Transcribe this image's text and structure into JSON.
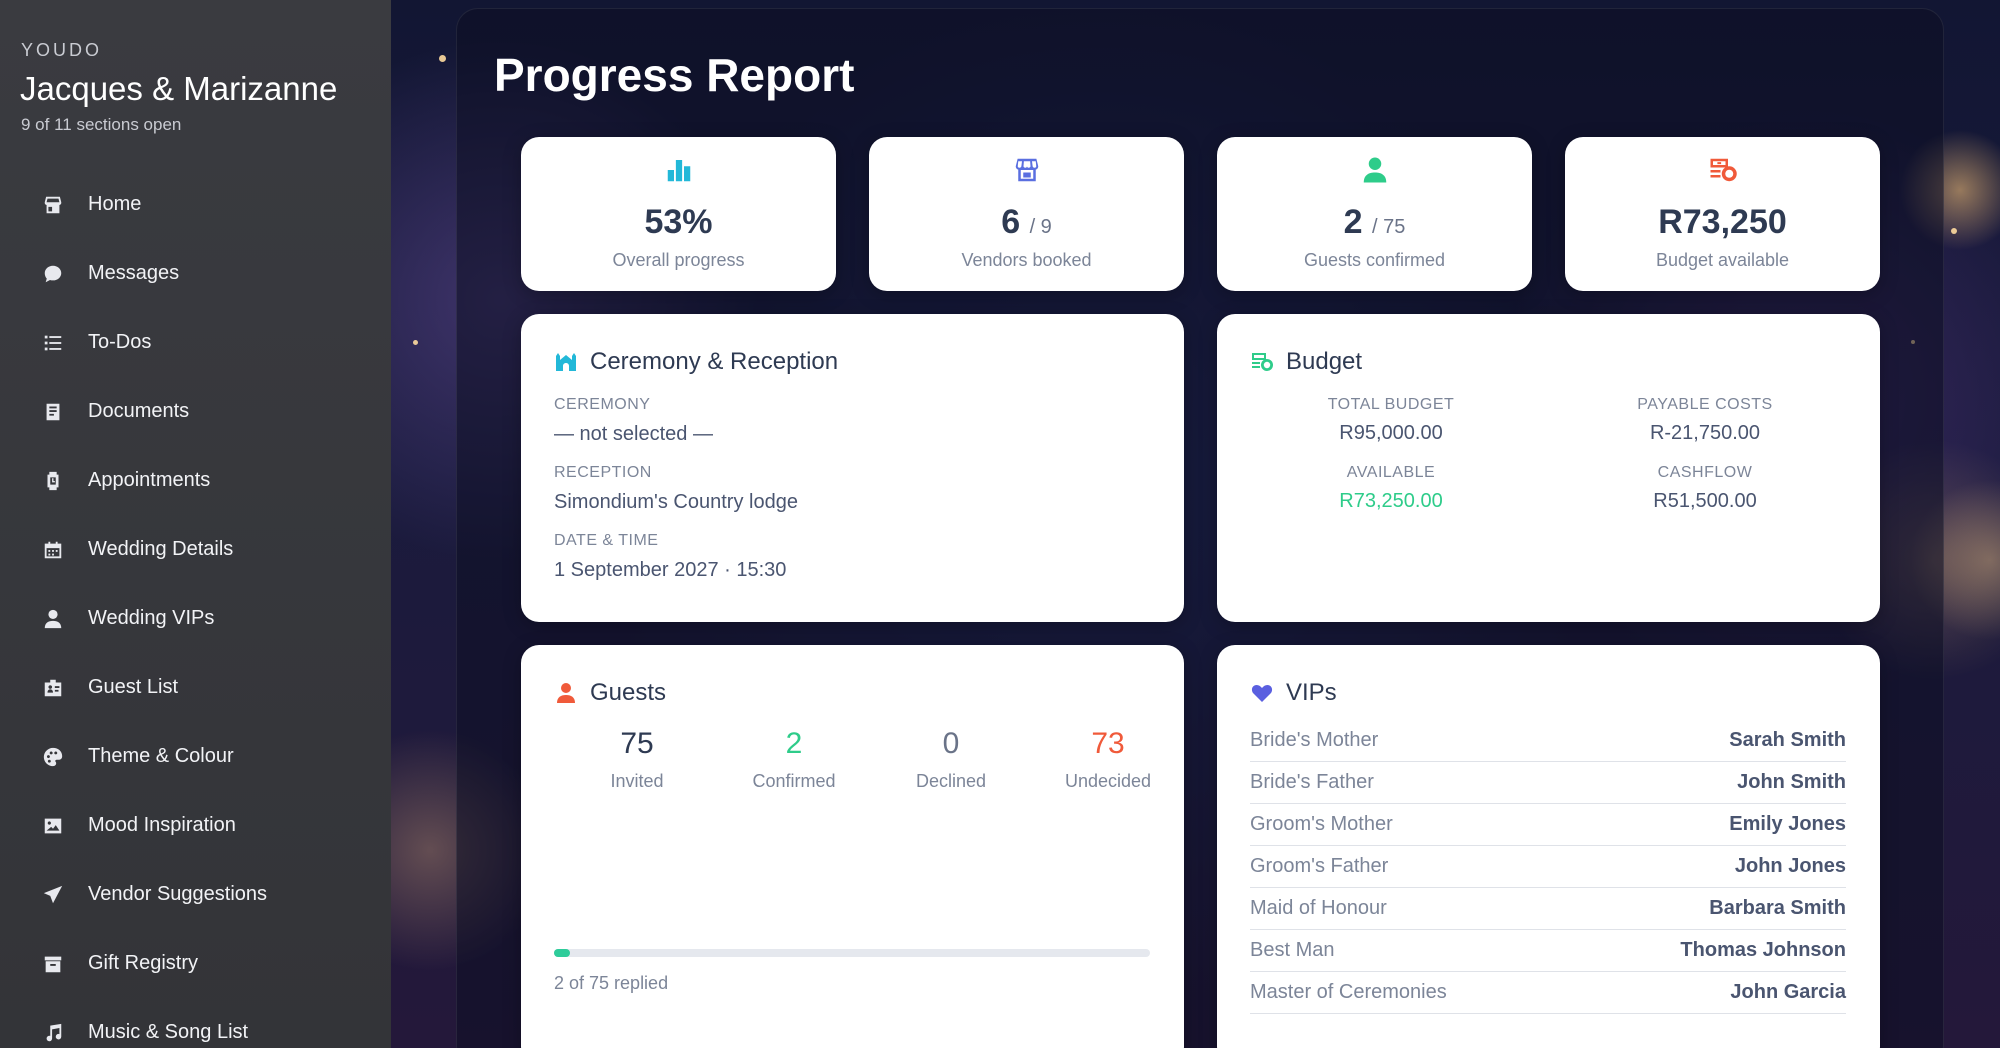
{
  "sidebar": {
    "brand": "YOUDO",
    "couple": "Jacques & Marizanne",
    "sections_open": "9 of 11 sections open",
    "items": [
      {
        "label": "Home",
        "icon": "home-icon"
      },
      {
        "label": "Messages",
        "icon": "chat-bubble-icon"
      },
      {
        "label": "To-Dos",
        "icon": "list-icon"
      },
      {
        "label": "Documents",
        "icon": "document-icon"
      },
      {
        "label": "Appointments",
        "icon": "watch-icon"
      },
      {
        "label": "Wedding Details",
        "icon": "calendar-icon"
      },
      {
        "label": "Wedding VIPs",
        "icon": "person-icon"
      },
      {
        "label": "Guest List",
        "icon": "id-badge-icon"
      },
      {
        "label": "Theme & Colour",
        "icon": "palette-icon"
      },
      {
        "label": "Mood Inspiration",
        "icon": "image-icon"
      },
      {
        "label": "Vendor Suggestions",
        "icon": "paper-plane-icon"
      },
      {
        "label": "Gift Registry",
        "icon": "gift-box-icon"
      },
      {
        "label": "Music & Song List",
        "icon": "music-note-icon"
      }
    ]
  },
  "main": {
    "title": "Progress Report",
    "stats": [
      {
        "value": "53%",
        "denominator": "",
        "label": "Overall progress",
        "icon": "bar-chart-icon",
        "color": "#22b8d8"
      },
      {
        "value": "6",
        "denominator": "/ 9",
        "label": "Vendors booked",
        "icon": "storefront-icon",
        "color": "#5a6fe0"
      },
      {
        "value": "2",
        "denominator": "/ 75",
        "label": "Guests confirmed",
        "icon": "person-icon",
        "color": "#2ecc8a"
      },
      {
        "value": "R73,250",
        "denominator": "",
        "label": "Budget available",
        "icon": "money-icon",
        "color": "#f05a3a"
      }
    ],
    "ceremony": {
      "title": "Ceremony & Reception",
      "ceremony_label": "CEREMONY",
      "ceremony_value": "— not selected —",
      "reception_label": "RECEPTION",
      "reception_value": "Simondium's Country lodge",
      "datetime_label": "DATE & TIME",
      "datetime_value": "1 September 2027 · 15:30"
    },
    "budget": {
      "title": "Budget",
      "total_label": "TOTAL BUDGET",
      "total_value": "R95,000.00",
      "payable_label": "PAYABLE COSTS",
      "payable_value": "R-21,750.00",
      "available_label": "AVAILABLE",
      "available_value": "R73,250.00",
      "cashflow_label": "CASHFLOW",
      "cashflow_value": "R51,500.00"
    },
    "guests": {
      "title": "Guests",
      "invited": "75",
      "invited_label": "Invited",
      "confirmed": "2",
      "confirmed_label": "Confirmed",
      "declined": "0",
      "declined_label": "Declined",
      "undecided": "73",
      "undecided_label": "Undecided",
      "replied_fraction": 0.0267,
      "replied_text": "2 of 75 replied"
    },
    "vips": {
      "title": "VIPs",
      "rows": [
        {
          "role": "Bride's Mother",
          "name": "Sarah Smith"
        },
        {
          "role": "Bride's Father",
          "name": "John Smith"
        },
        {
          "role": "Groom's Mother",
          "name": "Emily Jones"
        },
        {
          "role": "Groom's Father",
          "name": "John Jones"
        },
        {
          "role": "Maid of Honour",
          "name": "Barbara Smith"
        },
        {
          "role": "Best Man",
          "name": "Thomas Johnson"
        },
        {
          "role": "Master of Ceremonies",
          "name": "John Garcia"
        }
      ]
    }
  }
}
